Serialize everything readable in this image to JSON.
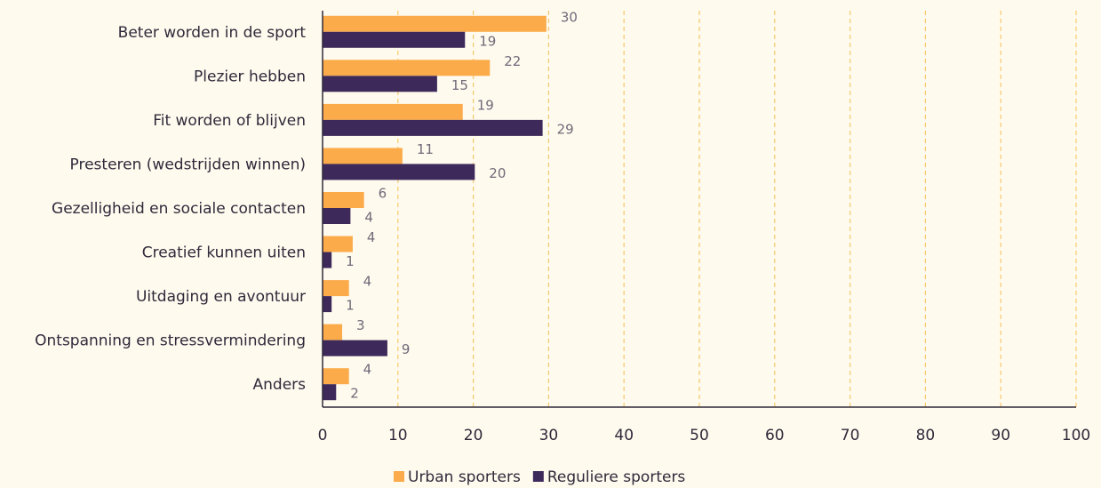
{
  "chart_data": {
    "type": "hbar",
    "categories": [
      "Beter worden in de sport",
      "Plezier hebben",
      "Fit worden of blijven",
      "Presteren (wedstrijden winnen)",
      "Gezelligheid en sociale contacten",
      "Creatief kunnen uiten",
      "Uitdaging en avontuur",
      "Ontspanning en stressvermindering",
      "Anders"
    ],
    "series": [
      {
        "name": "Urban sporters",
        "color": "#fbab4a",
        "values": [
          29.7,
          22.2,
          18.6,
          10.6,
          5.5,
          4.0,
          3.5,
          2.6,
          3.5
        ],
        "value_labels": [
          "30",
          "22",
          "19",
          "11",
          "6",
          "4",
          "4",
          "3",
          "4"
        ]
      },
      {
        "name": "Reguliere sporters",
        "color": "#3d2a5a",
        "values": [
          18.9,
          15.2,
          29.2,
          20.2,
          3.7,
          1.2,
          1.2,
          8.6,
          1.8
        ],
        "value_labels": [
          "19",
          "15",
          "29",
          "20",
          "4",
          "1",
          "1",
          "9",
          "2"
        ]
      }
    ],
    "xlim": [
      0,
      100
    ],
    "xticks": [
      0,
      10,
      20,
      30,
      40,
      50,
      60,
      70,
      80,
      90,
      100
    ],
    "grid": true,
    "legend": "bottom"
  }
}
